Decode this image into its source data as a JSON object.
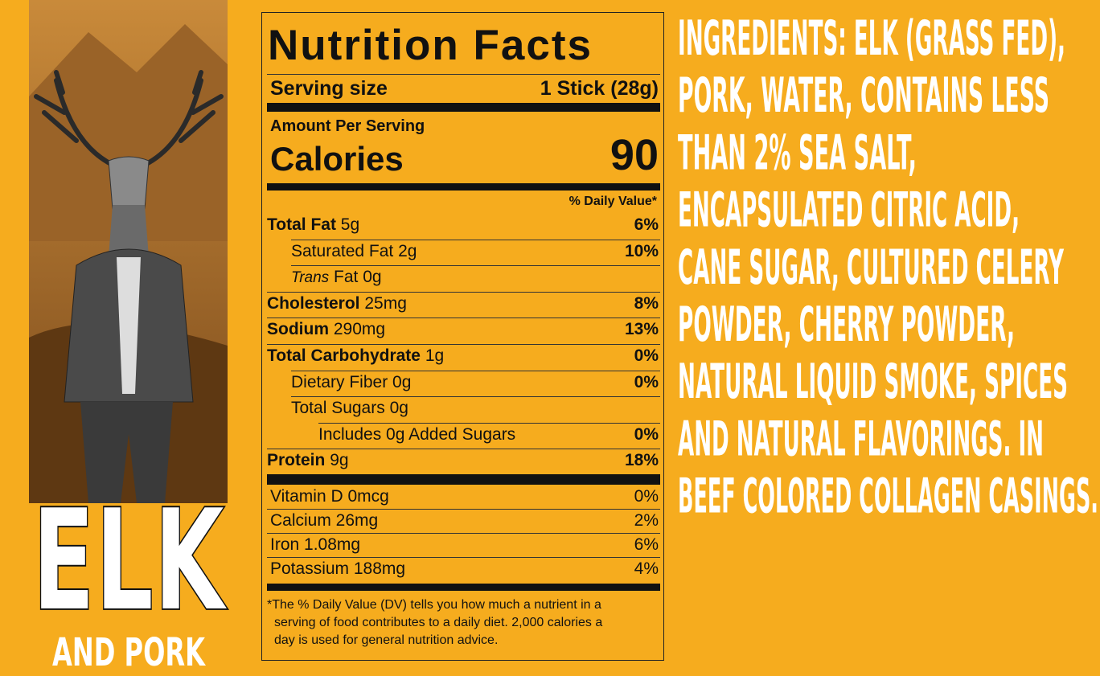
{
  "side": {
    "product": "ELK",
    "subtitle": "AND PORK"
  },
  "label": {
    "title": "Nutrition Facts",
    "serving_label": "Serving size",
    "serving_size": "1 Stick (28g)",
    "amount_per_serving": "Amount Per Serving",
    "calories_label": "Calories",
    "calories": 90,
    "dv_header": "% Daily Value*",
    "nutrients": [
      {
        "name": "Total Fat",
        "amount": "5g",
        "dv": "6%",
        "bold": true,
        "indent": 0
      },
      {
        "name": "Saturated Fat",
        "amount": "2g",
        "dv": "10%",
        "bold": false,
        "indent": 1
      },
      {
        "name_italic": "Trans",
        "name": "Fat",
        "amount": "0g",
        "bold": false,
        "indent": 1
      },
      {
        "name": "Cholesterol",
        "amount": "25mg",
        "dv": "8%",
        "bold": true,
        "indent": 0
      },
      {
        "name": "Sodium",
        "amount": "290mg",
        "dv": "13%",
        "bold": true,
        "indent": 0
      },
      {
        "name": "Total Carbohydrate",
        "amount": "1g",
        "dv": "0%",
        "bold": true,
        "indent": 0
      },
      {
        "name": "Dietary Fiber",
        "amount": "0g",
        "dv": "0%",
        "bold": false,
        "indent": 1
      },
      {
        "name": "Total Sugars",
        "amount": "0g",
        "bold": false,
        "indent": 1
      },
      {
        "name": "Includes 0g Added Sugars",
        "dv": "0%",
        "bold": false,
        "indent": 2
      },
      {
        "name": "Protein",
        "amount": "9g",
        "dv": "18%",
        "bold": true,
        "indent": 0
      }
    ],
    "vitamins": [
      {
        "name": "Vitamin D 0mcg",
        "dv": "0%"
      },
      {
        "name": "Calcium 26mg",
        "dv": "2%"
      },
      {
        "name": "Iron 1.08mg",
        "dv": "6%"
      },
      {
        "name": "Potassium 188mg",
        "dv": "4%"
      }
    ],
    "footnote": [
      "*The % Daily Value (DV) tells you how much a nutrient in a",
      "serving of food contributes to a daily diet. 2,000 calories a",
      "day is used for general nutrition advice."
    ]
  },
  "ingredients": {
    "lines": [
      "INGREDIENTS: ELK (GRASS FED),",
      "PORK, WATER, CONTAINS LESS",
      "THAN 2% SEA SALT,",
      "ENCAPSULATED CITRIC ACID,",
      "CANE SUGAR, CULTURED CELERY",
      "POWDER, CHERRY POWDER,",
      "NATURAL LIQUID SMOKE, SPICES",
      "AND NATURAL FLAVORINGS. IN",
      "BEEF COLORED COLLAGEN CASINGS."
    ]
  }
}
